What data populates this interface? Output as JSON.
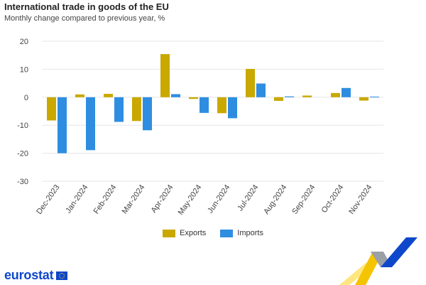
{
  "chart_data": {
    "type": "bar",
    "title": "International trade in goods of the EU",
    "subtitle": "Monthly change compared to previous year, %",
    "categories": [
      "Dec-2023",
      "Jan-2024",
      "Feb-2024",
      "Mar-2024",
      "Apr-2024",
      "May-2024",
      "Jun-2024",
      "Jul-2024",
      "Aug-2024",
      "Sep-2024",
      "Oct-2024",
      "Nov-2024"
    ],
    "series": [
      {
        "name": "Exports",
        "color": "#c9a800",
        "values": [
          -8.3,
          1.0,
          1.2,
          -8.5,
          15.4,
          -0.6,
          -5.7,
          10.1,
          -1.3,
          0.6,
          1.5,
          -1.2
        ]
      },
      {
        "name": "Imports",
        "color": "#2e8de0",
        "values": [
          -20.0,
          -18.9,
          -8.8,
          -11.8,
          1.1,
          -5.6,
          -7.5,
          4.9,
          0.3,
          0.0,
          3.3,
          0.2
        ]
      }
    ],
    "ylim": [
      -30,
      20
    ],
    "yticks": [
      20,
      10,
      0,
      -10,
      -20,
      -30
    ],
    "grid": true,
    "legend": "bottom"
  },
  "footer": {
    "brand": "eurostat",
    "flag_icon": "eu-flag-icon"
  }
}
